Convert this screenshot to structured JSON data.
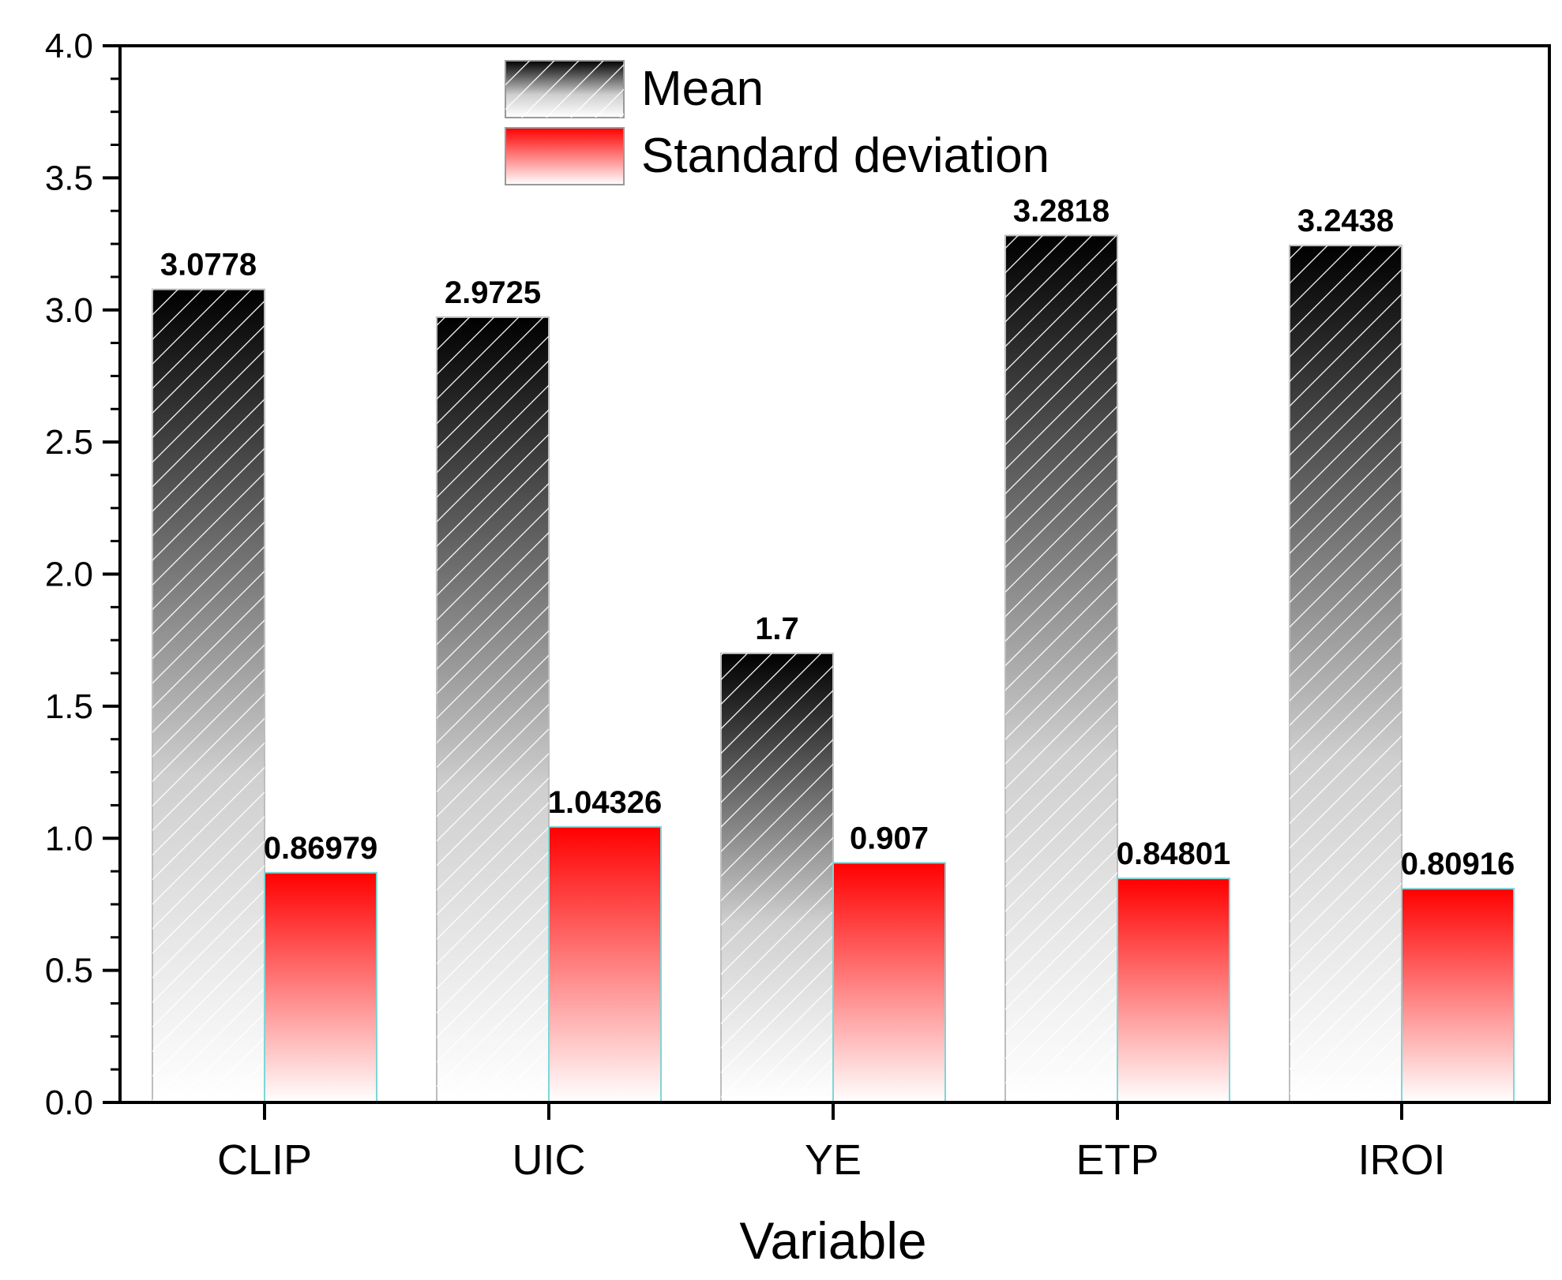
{
  "chart_data": {
    "type": "bar",
    "title": "",
    "xlabel": "Variable",
    "ylabel": "",
    "ylim": [
      0,
      4.0
    ],
    "yticks": [
      "0.0",
      "0.5",
      "1.0",
      "1.5",
      "2.0",
      "2.5",
      "3.0",
      "3.5",
      "4.0"
    ],
    "categories": [
      "CLIP",
      "UIC",
      "YE",
      "ETP",
      "IROI"
    ],
    "series": [
      {
        "name": "Mean",
        "values": [
          3.0778,
          2.9725,
          1.7,
          3.2818,
          3.2438
        ],
        "labels": [
          "3.0778",
          "2.9725",
          "1.7",
          "3.2818",
          "3.2438"
        ]
      },
      {
        "name": "Standard deviation",
        "values": [
          0.86979,
          1.04326,
          0.907,
          0.84801,
          0.80916
        ],
        "labels": [
          "0.86979",
          "1.04326",
          "0.907",
          "0.84801",
          "0.80916"
        ]
      }
    ],
    "legend": "top-center",
    "grid": false
  },
  "colors": {
    "mean_dark": "#0a0a0a",
    "mean_light": "#ffffff",
    "std_dark": "#ff0000",
    "std_light": "#ffffff",
    "bar_edge_std": "#7fd6d6"
  }
}
